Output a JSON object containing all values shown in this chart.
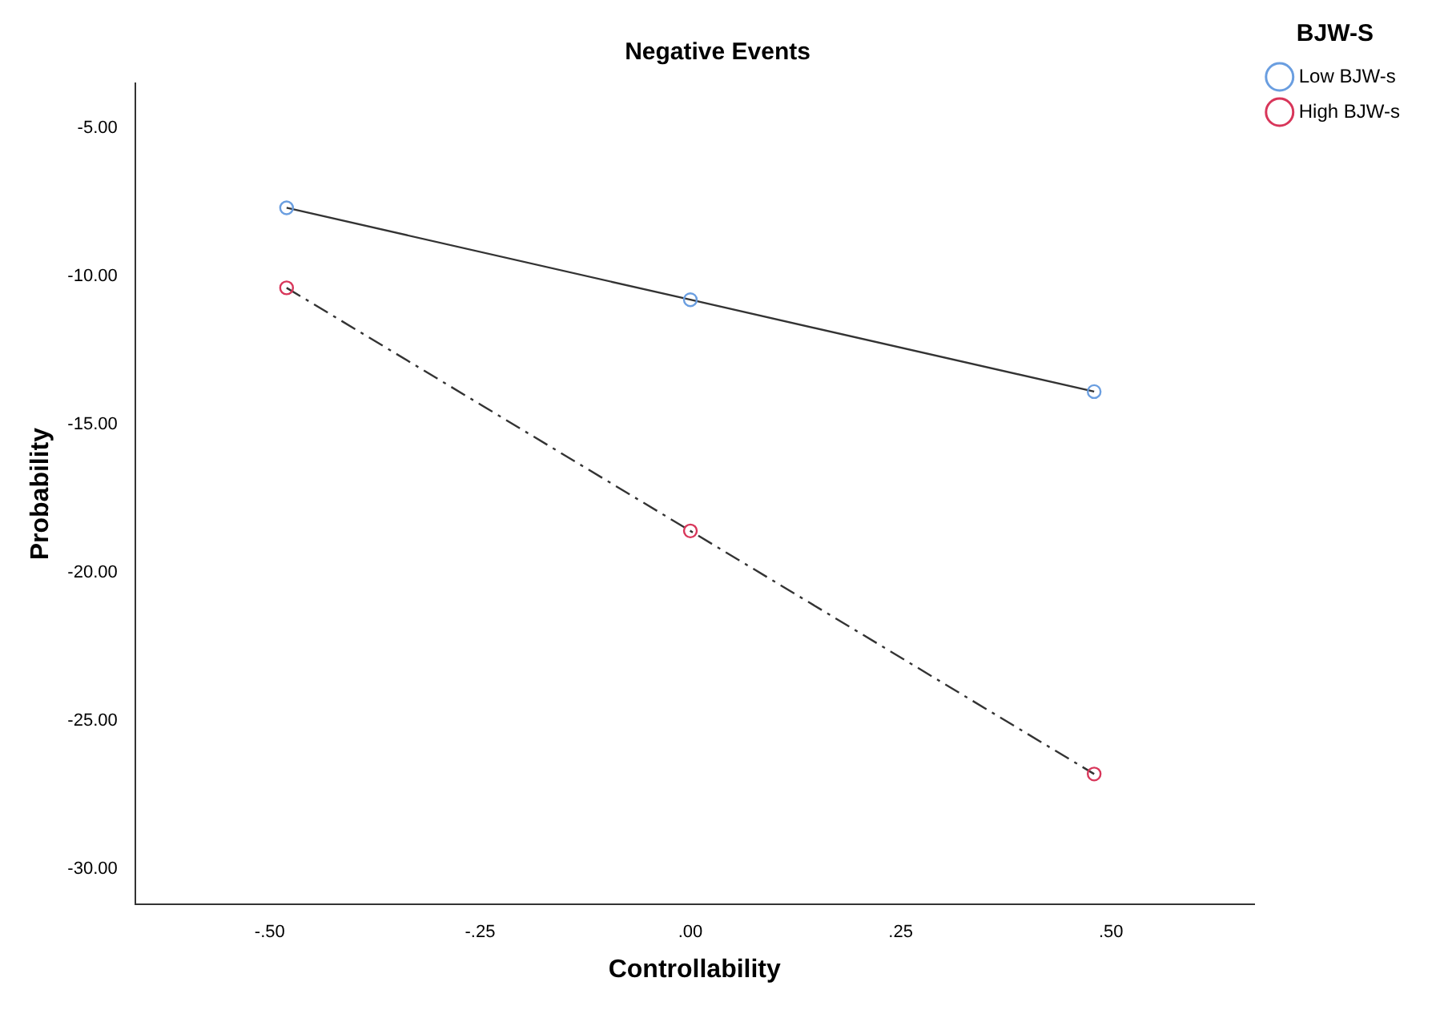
{
  "chart_data": {
    "type": "line",
    "title": "Negative Events",
    "xlabel": "Controllability",
    "ylabel": "Probability",
    "legend_title": "BJW-S",
    "legend": "top right",
    "grid": false,
    "marker": "circle",
    "xlim": [
      -0.66,
      0.67
    ],
    "ylim": [
      -31.2,
      -3.5
    ],
    "xticks": [
      {
        "value": -0.5,
        "label": "-.50"
      },
      {
        "value": -0.25,
        "label": "-.25"
      },
      {
        "value": 0,
        "label": ".00"
      },
      {
        "value": 0.25,
        "label": ".25"
      },
      {
        "value": 0.5,
        "label": ".50"
      }
    ],
    "yticks": [
      {
        "value": -5,
        "label": "-5.00"
      },
      {
        "value": -10,
        "label": "-10.00"
      },
      {
        "value": -15,
        "label": "-15.00"
      },
      {
        "value": -20,
        "label": "-20.00"
      },
      {
        "value": -25,
        "label": "-25.00"
      },
      {
        "value": -30,
        "label": "-30.00"
      }
    ],
    "series": [
      {
        "name": "Low BJW-s",
        "color": "#6a9ee0",
        "line_style": "solid",
        "x": [
          -0.48,
          0,
          0.48
        ],
        "values": [
          -7.7,
          -10.8,
          -13.9
        ]
      },
      {
        "name": "High BJW-s",
        "color": "#d8365a",
        "line_style": "dashed",
        "x": [
          -0.48,
          0,
          0.48
        ],
        "values": [
          -10.4,
          -18.6,
          -26.8
        ]
      }
    ]
  }
}
